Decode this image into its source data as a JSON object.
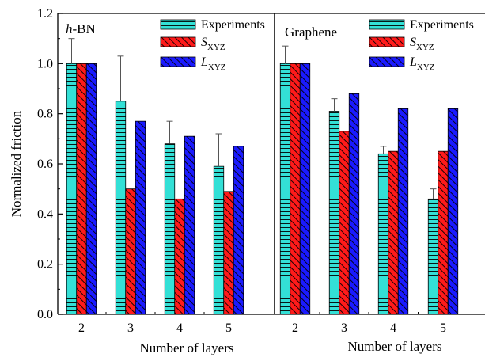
{
  "chart_data": [
    {
      "type": "bar",
      "panel_label": "h-BN",
      "xlabel": "Number of layers",
      "ylabel": "Normalized friction",
      "categories": [
        "2",
        "3",
        "4",
        "5"
      ],
      "ylim": [
        0,
        1.2
      ],
      "yticks": [
        "0.0",
        "0.2",
        "0.4",
        "0.6",
        "0.8",
        "1.0",
        "1.2"
      ],
      "series": [
        {
          "name": "Experiments",
          "values": [
            1.0,
            0.85,
            0.68,
            0.59
          ],
          "error": [
            0.1,
            0.18,
            0.09,
            0.13
          ],
          "color": "#33e0d6",
          "pattern": "horizontal-lines"
        },
        {
          "name": "S_XYZ",
          "values": [
            1.0,
            0.5,
            0.46,
            0.49
          ],
          "color": "#ff1a1a",
          "pattern": "diagonal-lines"
        },
        {
          "name": "L_XYZ",
          "values": [
            1.0,
            0.77,
            0.71,
            0.67
          ],
          "color": "#1a1aff",
          "pattern": "diagonal-lines"
        }
      ],
      "legend_position": "top-right",
      "grid": false
    },
    {
      "type": "bar",
      "panel_label": "Graphene",
      "xlabel": "Number of layers",
      "ylabel": "",
      "categories": [
        "2",
        "3",
        "4",
        "5"
      ],
      "ylim": [
        0,
        1.2
      ],
      "series": [
        {
          "name": "Experiments",
          "values": [
            1.0,
            0.81,
            0.64,
            0.46
          ],
          "error": [
            0.07,
            0.05,
            0.03,
            0.04
          ],
          "color": "#33e0d6",
          "pattern": "horizontal-lines"
        },
        {
          "name": "S_XYZ",
          "values": [
            1.0,
            0.73,
            0.65,
            0.65
          ],
          "color": "#ff1a1a",
          "pattern": "diagonal-lines"
        },
        {
          "name": "L_XYZ",
          "values": [
            1.0,
            0.88,
            0.82,
            0.82
          ],
          "color": "#1a1aff",
          "pattern": "diagonal-lines"
        }
      ],
      "legend_position": "top-right",
      "grid": false
    }
  ]
}
